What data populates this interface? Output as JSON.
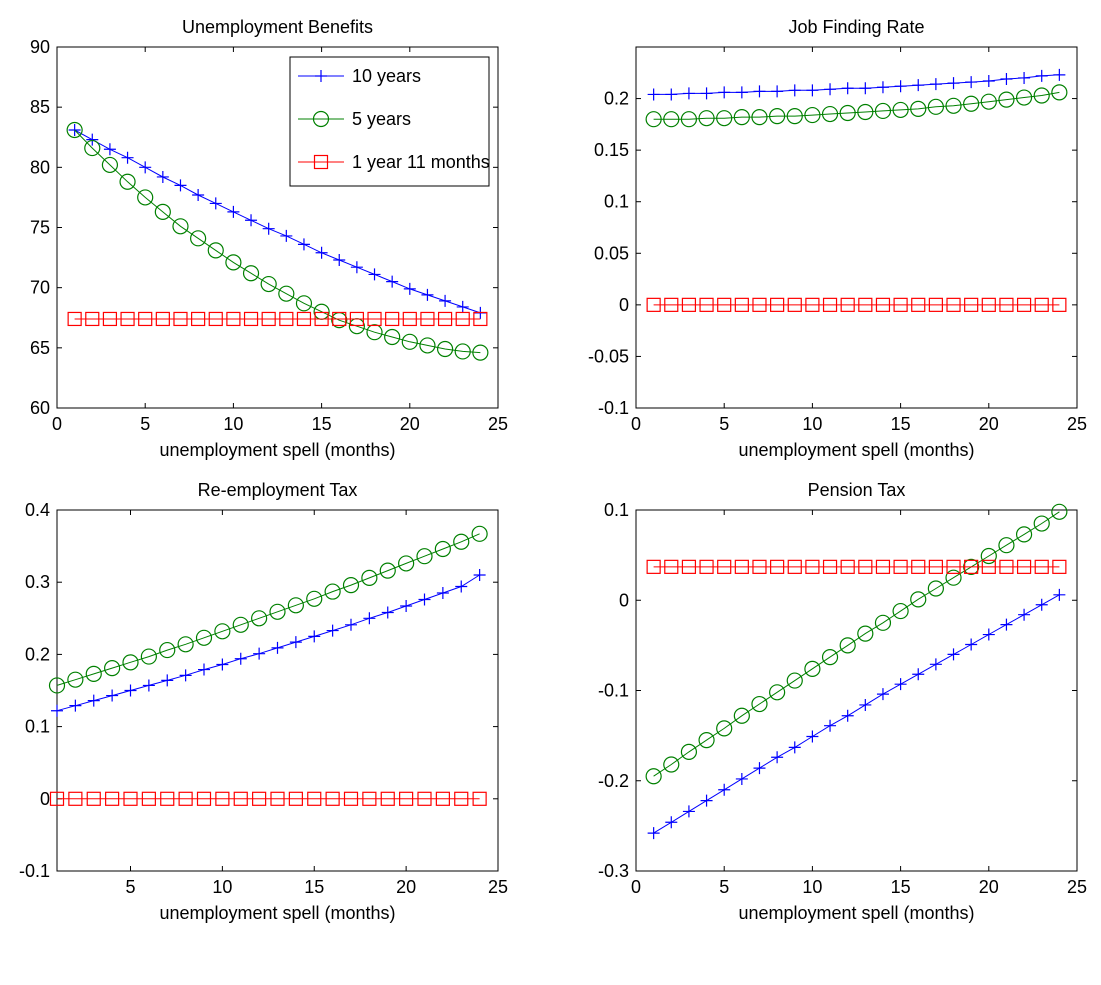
{
  "colors": {
    "series_10y": "#0000ff",
    "series_5y": "#008000",
    "series_1y11m": "#ff0000"
  },
  "legend": [
    "10 years",
    "5 years",
    "1 year 11 months"
  ],
  "chart_data": [
    {
      "type": "line",
      "title": "Unemployment Benefits",
      "xlabel": "unemployment spell (months)",
      "ylabel": "",
      "xlim": [
        0,
        25
      ],
      "ylim": [
        60,
        90
      ],
      "xticks": [
        "0",
        "5",
        "10",
        "15",
        "20",
        "25"
      ],
      "yticks": [
        "60",
        "65",
        "70",
        "75",
        "80",
        "85",
        "90"
      ],
      "grid": false,
      "legend_position": "top-right",
      "x": [
        1,
        2,
        3,
        4,
        5,
        6,
        7,
        8,
        9,
        10,
        11,
        12,
        13,
        14,
        15,
        16,
        17,
        18,
        19,
        20,
        21,
        22,
        23,
        24
      ],
      "series": [
        {
          "name": "10 years",
          "marker": "plus",
          "values": [
            83.1,
            82.3,
            81.5,
            80.8,
            80.0,
            79.2,
            78.5,
            77.7,
            77.0,
            76.3,
            75.6,
            74.9,
            74.3,
            73.6,
            72.9,
            72.3,
            71.7,
            71.1,
            70.5,
            69.9,
            69.4,
            68.9,
            68.4,
            67.9
          ]
        },
        {
          "name": "5 years",
          "marker": "circle",
          "values": [
            83.1,
            81.6,
            80.2,
            78.8,
            77.5,
            76.3,
            75.1,
            74.1,
            73.1,
            72.1,
            71.2,
            70.3,
            69.5,
            68.7,
            68.0,
            67.3,
            66.8,
            66.3,
            65.9,
            65.5,
            65.2,
            64.9,
            64.7,
            64.6
          ]
        },
        {
          "name": "1 year 11 months",
          "marker": "square",
          "values": [
            67.4,
            67.4,
            67.4,
            67.4,
            67.4,
            67.4,
            67.4,
            67.4,
            67.4,
            67.4,
            67.4,
            67.4,
            67.4,
            67.4,
            67.4,
            67.4,
            67.4,
            67.4,
            67.4,
            67.4,
            67.4,
            67.4,
            67.4,
            67.4
          ]
        }
      ]
    },
    {
      "type": "line",
      "title": "Job Finding Rate",
      "xlabel": "unemployment spell (months)",
      "ylabel": "",
      "xlim": [
        0,
        25
      ],
      "ylim": [
        -0.1,
        0.25
      ],
      "xticks": [
        "0",
        "5",
        "10",
        "15",
        "20",
        "25"
      ],
      "yticks": [
        "-0.1",
        "-0.05",
        "0",
        "0.05",
        "0.1",
        "0.15",
        "0.2"
      ],
      "grid": false,
      "x": [
        1,
        2,
        3,
        4,
        5,
        6,
        7,
        8,
        9,
        10,
        11,
        12,
        13,
        14,
        15,
        16,
        17,
        18,
        19,
        20,
        21,
        22,
        23,
        24
      ],
      "series": [
        {
          "name": "10 years",
          "marker": "plus",
          "values": [
            0.204,
            0.204,
            0.205,
            0.205,
            0.206,
            0.206,
            0.207,
            0.207,
            0.208,
            0.208,
            0.209,
            0.21,
            0.21,
            0.211,
            0.212,
            0.213,
            0.214,
            0.215,
            0.216,
            0.217,
            0.219,
            0.22,
            0.222,
            0.223
          ]
        },
        {
          "name": "5 years",
          "marker": "circle",
          "values": [
            0.18,
            0.18,
            0.18,
            0.181,
            0.181,
            0.182,
            0.182,
            0.183,
            0.183,
            0.184,
            0.185,
            0.186,
            0.187,
            0.188,
            0.189,
            0.19,
            0.192,
            0.193,
            0.195,
            0.197,
            0.199,
            0.201,
            0.203,
            0.206
          ]
        },
        {
          "name": "1 year 11 months",
          "marker": "square",
          "values": [
            0,
            0,
            0,
            0,
            0,
            0,
            0,
            0,
            0,
            0,
            0,
            0,
            0,
            0,
            0,
            0,
            0,
            0,
            0,
            0,
            0,
            0,
            0,
            0
          ]
        }
      ]
    },
    {
      "type": "line",
      "title": "Re-employment Tax",
      "xlabel": "unemployment spell (months)",
      "ylabel": "",
      "xlim": [
        1,
        25
      ],
      "ylim": [
        -0.1,
        0.4
      ],
      "xticks": [
        "5",
        "10",
        "15",
        "20",
        "25"
      ],
      "yticks": [
        "-0.1",
        "0",
        "0.1",
        "0.2",
        "0.3",
        "0.4"
      ],
      "grid": false,
      "x": [
        1,
        2,
        3,
        4,
        5,
        6,
        7,
        8,
        9,
        10,
        11,
        12,
        13,
        14,
        15,
        16,
        17,
        18,
        19,
        20,
        21,
        22,
        23,
        24
      ],
      "series": [
        {
          "name": "10 years",
          "marker": "plus",
          "values": [
            0.122,
            0.129,
            0.136,
            0.143,
            0.15,
            0.157,
            0.164,
            0.171,
            0.179,
            0.186,
            0.194,
            0.201,
            0.209,
            0.217,
            0.225,
            0.233,
            0.241,
            0.25,
            0.258,
            0.267,
            0.276,
            0.285,
            0.294,
            0.31
          ]
        },
        {
          "name": "5 years",
          "marker": "circle",
          "values": [
            0.157,
            0.165,
            0.173,
            0.181,
            0.189,
            0.197,
            0.206,
            0.214,
            0.223,
            0.232,
            0.241,
            0.25,
            0.259,
            0.268,
            0.277,
            0.287,
            0.296,
            0.306,
            0.316,
            0.326,
            0.336,
            0.346,
            0.356,
            0.367
          ]
        },
        {
          "name": "1 year 11 months",
          "marker": "square",
          "values": [
            0,
            0,
            0,
            0,
            0,
            0,
            0,
            0,
            0,
            0,
            0,
            0,
            0,
            0,
            0,
            0,
            0,
            0,
            0,
            0,
            0,
            0,
            0,
            0
          ]
        }
      ]
    },
    {
      "type": "line",
      "title": "Pension Tax",
      "xlabel": "unemployment spell (months)",
      "ylabel": "",
      "xlim": [
        0,
        25
      ],
      "ylim": [
        -0.3,
        0.1
      ],
      "xticks": [
        "0",
        "5",
        "10",
        "15",
        "20",
        "25"
      ],
      "yticks": [
        "-0.3",
        "-0.2",
        "-0.1",
        "0",
        "0.1"
      ],
      "grid": false,
      "x": [
        1,
        2,
        3,
        4,
        5,
        6,
        7,
        8,
        9,
        10,
        11,
        12,
        13,
        14,
        15,
        16,
        17,
        18,
        19,
        20,
        21,
        22,
        23,
        24
      ],
      "series": [
        {
          "name": "10 years",
          "marker": "plus",
          "values": [
            -0.258,
            -0.246,
            -0.234,
            -0.222,
            -0.21,
            -0.198,
            -0.186,
            -0.174,
            -0.163,
            -0.151,
            -0.139,
            -0.128,
            -0.116,
            -0.104,
            -0.093,
            -0.082,
            -0.071,
            -0.06,
            -0.049,
            -0.038,
            -0.027,
            -0.016,
            -0.005,
            0.006
          ]
        },
        {
          "name": "5 years",
          "marker": "circle",
          "values": [
            -0.195,
            -0.182,
            -0.168,
            -0.155,
            -0.142,
            -0.128,
            -0.115,
            -0.102,
            -0.089,
            -0.076,
            -0.063,
            -0.05,
            -0.037,
            -0.025,
            -0.012,
            0.001,
            0.013,
            0.025,
            0.037,
            0.049,
            0.061,
            0.073,
            0.085,
            0.098
          ]
        },
        {
          "name": "1 year 11 months",
          "marker": "square",
          "values": [
            0.037,
            0.037,
            0.037,
            0.037,
            0.037,
            0.037,
            0.037,
            0.037,
            0.037,
            0.037,
            0.037,
            0.037,
            0.037,
            0.037,
            0.037,
            0.037,
            0.037,
            0.037,
            0.037,
            0.037,
            0.037,
            0.037,
            0.037,
            0.037
          ]
        }
      ]
    }
  ]
}
